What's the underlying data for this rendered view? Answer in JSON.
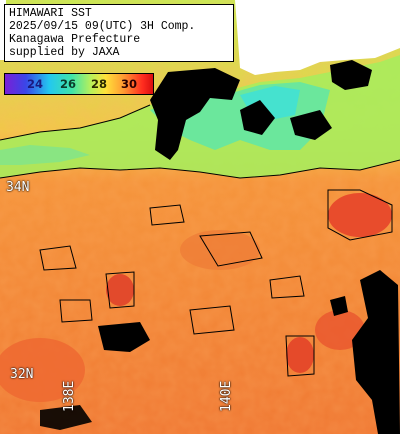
{
  "caption": {
    "line1": "HIMAWARI SST",
    "line2": "2025/09/15 09(UTC) 3H Comp.",
    "line3": "Kanagawa Prefecture",
    "line4": "supplied by JAXA"
  },
  "legend": {
    "ticks": [
      "24",
      "26",
      "28",
      "30"
    ],
    "tick_colors": [
      "#1a1a80",
      "#0c3b2a",
      "#2a2a00",
      "#2a0000"
    ]
  },
  "grid_labels": {
    "lat_34": "34N",
    "lat_32": "32N",
    "lon_138": "138E",
    "lon_140": "140E"
  },
  "colors": {
    "land": "#ffffff",
    "cloud_mask": "#000000",
    "sst_warm": "#f5883a",
    "sst_hot": "#ea4a2a",
    "sst_cool": "#6ee69a",
    "sst_coast": "#c6ee55"
  }
}
